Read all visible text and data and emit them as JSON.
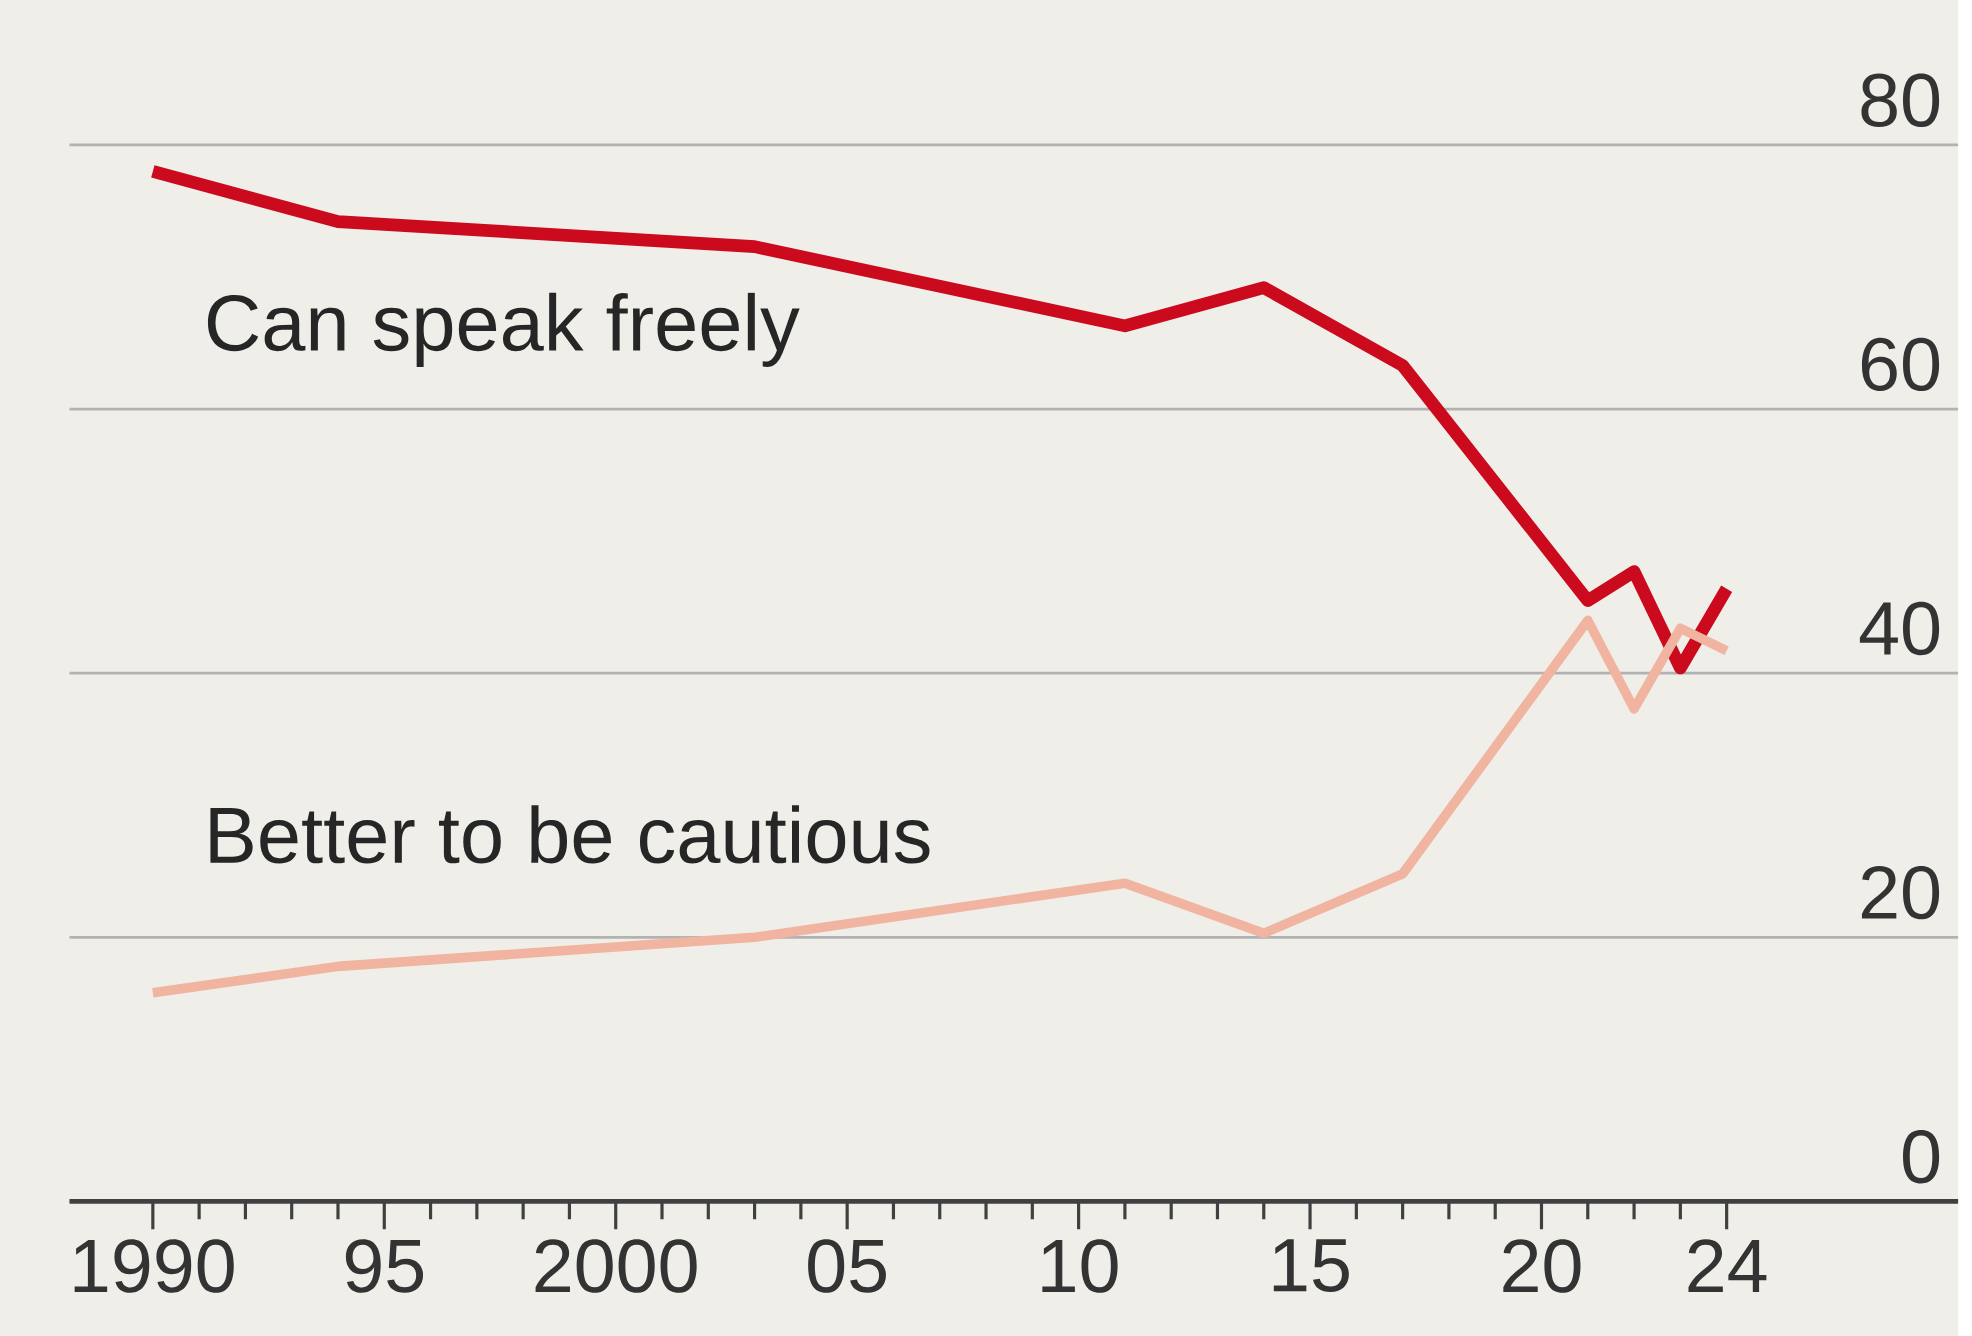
{
  "chart_data": {
    "type": "line",
    "x": [
      1990,
      1994,
      2003,
      2011,
      2014,
      2017,
      2021,
      2022,
      2023,
      2024
    ],
    "series": [
      {
        "name": "Can speak freely",
        "color": "#cc0a1e",
        "values": [
          78.0,
          74.2,
          72.3,
          66.3,
          69.2,
          63.3,
          45.5,
          47.7,
          40.4,
          46.4
        ]
      },
      {
        "name": "Better to be cautious",
        "color": "#f0b4a0",
        "values": [
          15.8,
          17.8,
          20.0,
          24.1,
          20.3,
          24.8,
          44.0,
          37.3,
          43.4,
          41.7
        ]
      }
    ],
    "xlim": [
      1988.2,
      2029
    ],
    "xticks": [
      {
        "value": 1990,
        "label": "1990"
      },
      {
        "value": 1991,
        "label": null
      },
      {
        "value": 1992,
        "label": null
      },
      {
        "value": 1993,
        "label": null
      },
      {
        "value": 1994,
        "label": null
      },
      {
        "value": 1995,
        "label": "95"
      },
      {
        "value": 1996,
        "label": null
      },
      {
        "value": 1997,
        "label": null
      },
      {
        "value": 1998,
        "label": null
      },
      {
        "value": 1999,
        "label": null
      },
      {
        "value": 2000,
        "label": "2000"
      },
      {
        "value": 2001,
        "label": null
      },
      {
        "value": 2002,
        "label": null
      },
      {
        "value": 2003,
        "label": null
      },
      {
        "value": 2004,
        "label": null
      },
      {
        "value": 2005,
        "label": "05"
      },
      {
        "value": 2006,
        "label": null
      },
      {
        "value": 2007,
        "label": null
      },
      {
        "value": 2008,
        "label": null
      },
      {
        "value": 2009,
        "label": null
      },
      {
        "value": 2010,
        "label": "10"
      },
      {
        "value": 2011,
        "label": null
      },
      {
        "value": 2012,
        "label": null
      },
      {
        "value": 2013,
        "label": null
      },
      {
        "value": 2014,
        "label": null
      },
      {
        "value": 2015,
        "label": "15"
      },
      {
        "value": 2016,
        "label": null
      },
      {
        "value": 2017,
        "label": null
      },
      {
        "value": 2018,
        "label": null
      },
      {
        "value": 2019,
        "label": null
      },
      {
        "value": 2020,
        "label": "20"
      },
      {
        "value": 2021,
        "label": null
      },
      {
        "value": 2022,
        "label": null
      },
      {
        "value": 2023,
        "label": null
      },
      {
        "value": 2024,
        "label": "24"
      }
    ],
    "ylim": [
      0,
      80
    ],
    "yticks": [
      0,
      20,
      40,
      60,
      80
    ],
    "grid": "y",
    "marker": "none",
    "line_style": "solid"
  }
}
